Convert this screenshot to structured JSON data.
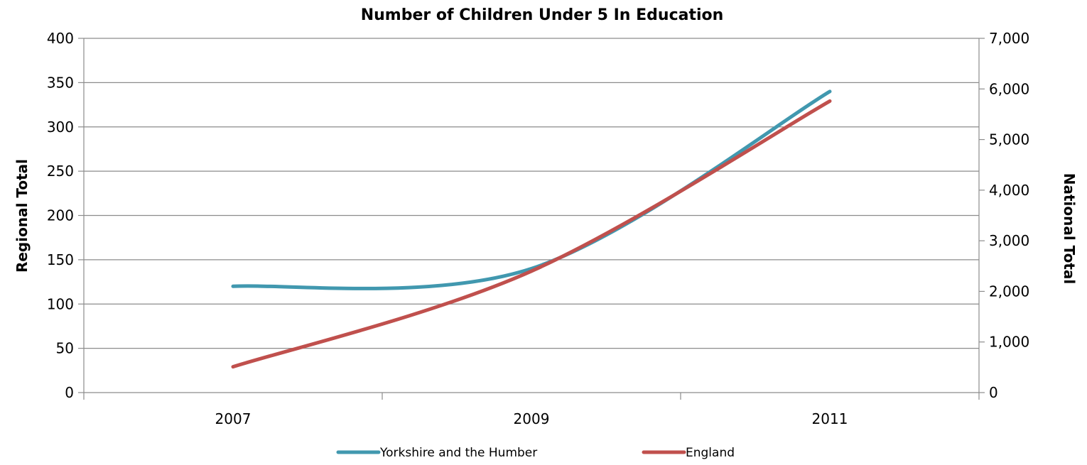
{
  "chart_data": {
    "type": "line",
    "title": "Number of Children Under 5 In Education",
    "x": [
      "2007",
      "2009",
      "2011"
    ],
    "xlabel": "",
    "ylabel_left": "Regional Total",
    "ylabel_right": "National Total",
    "ylim_left": [
      0,
      400
    ],
    "ylim_right": [
      0,
      7000
    ],
    "yticks_left": [
      "0",
      "50",
      "100",
      "150",
      "200",
      "250",
      "300",
      "350",
      "400"
    ],
    "yticks_right": [
      "0",
      "1,000",
      "2,000",
      "3,000",
      "4,000",
      "5,000",
      "6,000",
      "7,000"
    ],
    "grid": true,
    "legend": "bottom",
    "series": [
      {
        "name": "Yorkshire and the Humber",
        "axis": "left",
        "values": [
          120,
          140,
          340
        ],
        "color": "#4198AF"
      },
      {
        "name": "England",
        "axis": "right",
        "values": [
          510,
          2400,
          5760
        ],
        "color": "#C0504D"
      }
    ]
  }
}
